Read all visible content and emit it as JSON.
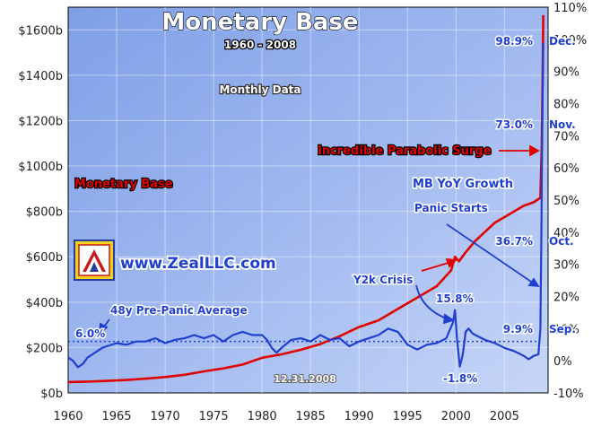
{
  "chart_data": {
    "type": "line",
    "title": "Monetary Base",
    "subtitle": "1960 - 2008",
    "frequency_label": "Monthly Data",
    "date_stamp": "12.31.2008",
    "source_url": "www.ZealLLC.com",
    "xlim": [
      1960,
      2009.5
    ],
    "x_ticks": [
      "1960",
      "1965",
      "1970",
      "1975",
      "1980",
      "1985",
      "1990",
      "1995",
      "2000",
      "2005"
    ],
    "y_left": {
      "lim": [
        0,
        1700
      ],
      "ticks": [
        "$0b",
        "$200b",
        "$400b",
        "$600b",
        "$800b",
        "$1000b",
        "$1200b",
        "$1400b",
        "$1600b"
      ]
    },
    "y_right": {
      "lim": [
        -10,
        110
      ],
      "ticks": [
        "-10%",
        "0%",
        "10%",
        "20%",
        "30%",
        "40%",
        "50%",
        "60%",
        "70%",
        "80%",
        "90%",
        "100%",
        "110%"
      ]
    },
    "colors": {
      "background": "#8aa8e8",
      "monetary_base": "#e00000",
      "yoy_growth": "#1f3fcf",
      "average": "#1f3fcf"
    },
    "series": [
      {
        "name": "Monetary Base",
        "axis": "left",
        "x": [
          1960,
          1962,
          1964,
          1966,
          1968,
          1970,
          1972,
          1974,
          1976,
          1978,
          1980,
          1982,
          1984,
          1986,
          1988,
          1990,
          1992,
          1994,
          1996,
          1998,
          1999.5,
          1999.9,
          2000.3,
          2001,
          2002,
          2003,
          2004,
          2005,
          2006,
          2007,
          2008.0,
          2008.7,
          2008.85,
          2008.95,
          2009.0
        ],
        "values": [
          48,
          50,
          53,
          57,
          63,
          70,
          80,
          95,
          108,
          125,
          155,
          170,
          190,
          215,
          250,
          290,
          320,
          370,
          420,
          470,
          540,
          600,
          580,
          620,
          670,
          710,
          750,
          775,
          800,
          825,
          840,
          860,
          1100,
          1460,
          1665
        ]
      },
      {
        "name": "MB YoY Growth",
        "axis": "right",
        "x": [
          1960,
          1960.5,
          1961,
          1961.5,
          1962,
          1962.5,
          1963,
          1963.5,
          1964,
          1965,
          1966,
          1967,
          1968,
          1969,
          1970,
          1971,
          1972,
          1973,
          1974,
          1975,
          1976,
          1977,
          1978,
          1979,
          1980,
          1980.5,
          1981,
          1981.5,
          1982,
          1983,
          1984,
          1985,
          1986,
          1987,
          1988,
          1989,
          1990,
          1991,
          1992,
          1993,
          1994,
          1995,
          1996,
          1997,
          1998,
          1999,
          1999.7,
          1999.9,
          2000.1,
          2000.4,
          2000.7,
          2001,
          2001.3,
          2001.7,
          2002,
          2003,
          2004,
          2005,
          2006,
          2007,
          2007.5,
          2008,
          2008.5,
          2008.7,
          2008.8,
          2008.9,
          2009.0
        ],
        "values": [
          1,
          0,
          -2,
          -1,
          1,
          2,
          3,
          4,
          4.5,
          5.5,
          5,
          6,
          6,
          7,
          5.5,
          6.5,
          7,
          8,
          7,
          8,
          6,
          8,
          9,
          8,
          8,
          6.5,
          4,
          2.5,
          4,
          6.5,
          7,
          6,
          8,
          6.5,
          7,
          4.5,
          6,
          7,
          8,
          10,
          9,
          5,
          3.5,
          5,
          5.5,
          7,
          12,
          15.8,
          7,
          -1.8,
          2,
          9,
          10,
          8.5,
          8,
          6.5,
          5.5,
          4,
          3,
          1.5,
          0.5,
          1.5,
          2,
          9.9,
          36.7,
          73,
          98.9
        ]
      }
    ],
    "reference_line": {
      "name": "48y Pre-Panic Average",
      "value": 6.0,
      "axis": "right",
      "label": "6.0%"
    },
    "annotations": [
      {
        "text": "Monetary Base"
      },
      {
        "text": "MB YoY Growth"
      },
      {
        "text": "Incredible Parabolic Surge"
      },
      {
        "text": "Panic Starts"
      },
      {
        "text": "Y2k Crisis"
      },
      {
        "text": "48y Pre-Panic Average"
      },
      {
        "text": "98.9%"
      },
      {
        "text": "Dec."
      },
      {
        "text": "73.0%"
      },
      {
        "text": "Nov."
      },
      {
        "text": "36.7%"
      },
      {
        "text": "Oct."
      },
      {
        "text": "9.9%"
      },
      {
        "text": "Sep."
      },
      {
        "text": "15.8%"
      },
      {
        "text": "-1.8%"
      },
      {
        "text": "6.0%"
      }
    ],
    "grid": true,
    "legend": "none"
  }
}
